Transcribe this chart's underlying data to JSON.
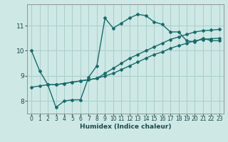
{
  "xlabel": "Humidex (Indice chaleur)",
  "bg_color": "#cde8e5",
  "grid_color": "#a8cecc",
  "line_color": "#1a6b6b",
  "xlim": [
    -0.5,
    23.5
  ],
  "ylim": [
    7.5,
    11.85
  ],
  "yticks": [
    8,
    9,
    10,
    11
  ],
  "xticks": [
    0,
    1,
    2,
    3,
    4,
    5,
    6,
    7,
    8,
    9,
    10,
    11,
    12,
    13,
    14,
    15,
    16,
    17,
    18,
    19,
    20,
    21,
    22,
    23
  ],
  "lines": [
    {
      "x": [
        0,
        1,
        2,
        3,
        4,
        5,
        6,
        7,
        8,
        9,
        10,
        11,
        12,
        13,
        14,
        15,
        16,
        17,
        18,
        19,
        20,
        21,
        22,
        23
      ],
      "y": [
        10.0,
        9.2,
        8.65,
        7.75,
        8.0,
        8.05,
        8.05,
        8.95,
        9.4,
        11.3,
        10.9,
        11.1,
        11.3,
        11.45,
        11.4,
        11.15,
        11.05,
        10.75,
        10.75,
        10.4,
        10.35,
        10.5,
        10.4,
        10.4
      ]
    },
    {
      "x": [
        0,
        1,
        2,
        3,
        4,
        5,
        6,
        7,
        8,
        9,
        10,
        11,
        12,
        13,
        14,
        15,
        16,
        17,
        18,
        19,
        20,
        21,
        22,
        23
      ],
      "y": [
        8.55,
        8.6,
        8.65,
        8.65,
        8.7,
        8.75,
        8.8,
        8.85,
        8.9,
        9.0,
        9.1,
        9.25,
        9.4,
        9.55,
        9.7,
        9.85,
        9.95,
        10.1,
        10.2,
        10.3,
        10.4,
        10.45,
        10.48,
        10.5
      ]
    },
    {
      "x": [
        2,
        3,
        4,
        5,
        6,
        7,
        8,
        9,
        10,
        11,
        12,
        13,
        14,
        15,
        16,
        17,
        18,
        19,
        20,
        21,
        22,
        23
      ],
      "y": [
        8.65,
        8.65,
        8.7,
        8.75,
        8.8,
        8.85,
        8.9,
        9.1,
        9.3,
        9.5,
        9.7,
        9.85,
        10.0,
        10.15,
        10.3,
        10.45,
        10.55,
        10.65,
        10.75,
        10.8,
        10.82,
        10.85
      ]
    }
  ],
  "marker": "D",
  "markersize": 2.0,
  "linewidth": 1.0,
  "xlabel_fontsize": 6.5,
  "tick_fontsize": 5.5,
  "ytick_fontsize": 6.5
}
